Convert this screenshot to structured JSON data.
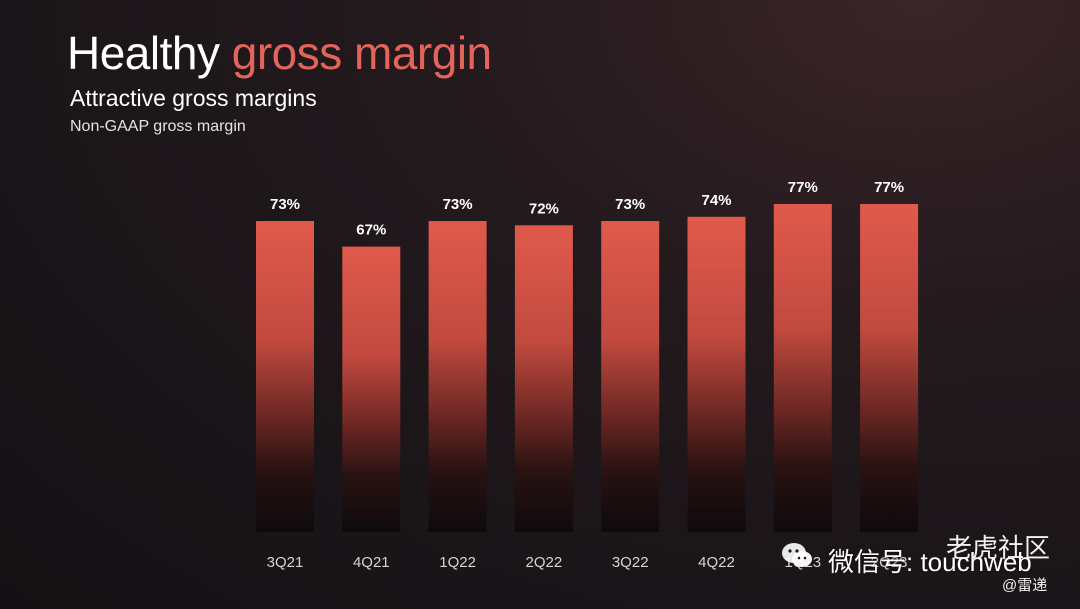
{
  "header": {
    "title_main": "Healthy",
    "title_accent": "gross margin",
    "subtitle": "Attractive gross margins",
    "note": "Non-GAAP gross margin"
  },
  "colors": {
    "accent": "#e3645a",
    "bar_top": "#e05a4c",
    "bar_bottom": "#0d0a0b"
  },
  "chart_data": {
    "type": "bar",
    "categories": [
      "3Q21",
      "4Q21",
      "1Q22",
      "2Q22",
      "3Q22",
      "4Q22",
      "1Q23",
      "2Q23"
    ],
    "values": [
      73,
      67,
      73,
      72,
      73,
      74,
      77,
      77
    ],
    "data_labels": [
      "73%",
      "67%",
      "73%",
      "72%",
      "73%",
      "74%",
      "77%",
      "77%"
    ],
    "title": "Healthy gross margin",
    "subtitle": "Attractive gross margins",
    "xlabel": "",
    "ylabel": "Non-GAAP gross margin",
    "ylim": [
      0,
      77
    ],
    "unit": "%",
    "grid": false,
    "legend": "none"
  },
  "watermark": {
    "wechat_text": "微信号: touchweb",
    "community": "老虎社区",
    "handle": "@雷递"
  }
}
